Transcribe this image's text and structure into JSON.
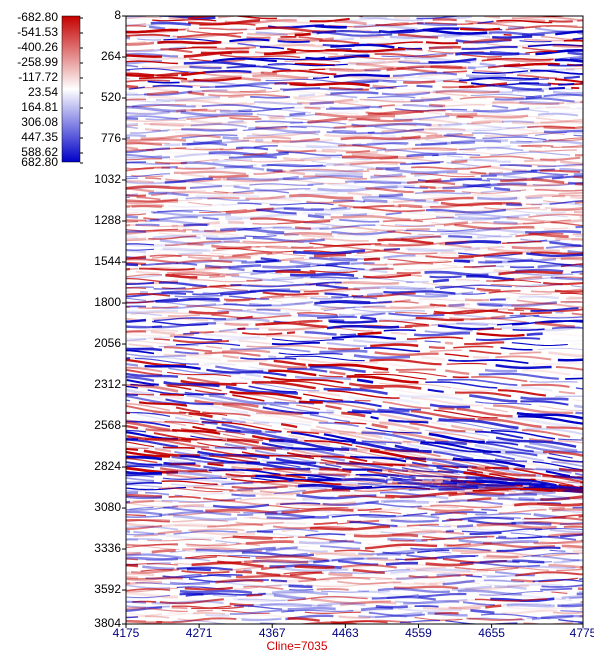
{
  "chart_data": {
    "type": "seismic",
    "x_label": "Cline=7035",
    "xlim": [
      4175,
      4775
    ],
    "xticks": [
      4175,
      4271,
      4367,
      4463,
      4559,
      4655,
      4775
    ],
    "ylim": [
      8,
      3804
    ],
    "yticks": [
      8,
      264,
      520,
      776,
      1032,
      1288,
      1544,
      1800,
      2056,
      2312,
      2568,
      2824,
      3080,
      3336,
      3592,
      3804
    ],
    "clim": [
      -682.8,
      682.8
    ],
    "colormap": [
      "#c40000",
      "#ffffff",
      "#0000c8"
    ],
    "cticks": [
      {
        "value": -682.8,
        "label": "-682.80"
      },
      -541.53,
      -400.26,
      -258.99,
      -117.72,
      23.54,
      164.81,
      306.08,
      447.35,
      588.62,
      {
        "value": 682.8,
        "label": "682.80"
      }
    ]
  }
}
